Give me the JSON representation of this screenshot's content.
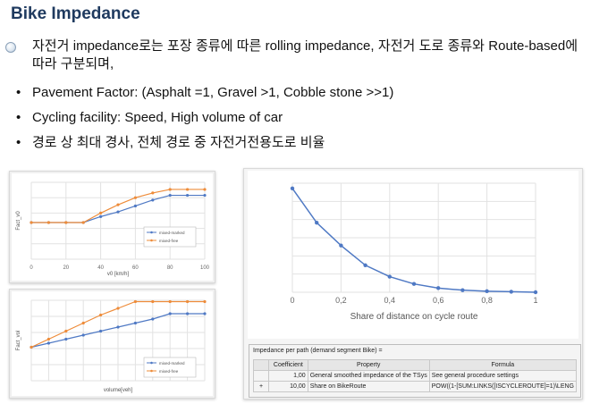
{
  "title": "Bike Impedance",
  "bullets": {
    "main": "자전거 impedance로는 포장 종류에 따른 rolling impedance, 자전거 도로 종류와 Route-based에 따라 구분되며,",
    "sub": [
      "Pavement Factor: (Asphalt =1, Gravel >1, Cobble stone >>1)",
      "Cycling facility: Speed, High volume of car",
      "경로 상 최대 경사, 전체 경로 중 자전거전용도로 비율"
    ],
    "sub_marker": "•"
  },
  "colors": {
    "blue": "#4f79c4",
    "orange": "#ee8c3a",
    "title": "#1f3a5f"
  },
  "chart_data": [
    {
      "type": "line",
      "xlabel": "v0 [km/h]",
      "ylabel": "Fact_v0",
      "xlim": [
        0,
        100
      ],
      "ylim": [
        0,
        1.3
      ],
      "xticks": [
        "0",
        "20",
        "40",
        "60",
        "80",
        "100"
      ],
      "grid": true,
      "legend": "center-right",
      "x": [
        0,
        10,
        20,
        30,
        40,
        50,
        60,
        70,
        80,
        90,
        100
      ],
      "series": [
        {
          "name": "mixed-marked",
          "color": "#4f79c4",
          "values": [
            0.62,
            0.62,
            0.62,
            0.62,
            0.72,
            0.8,
            0.9,
            1.0,
            1.08,
            1.08,
            1.08
          ]
        },
        {
          "name": "mixed-free",
          "color": "#ee8c3a",
          "values": [
            0.62,
            0.62,
            0.62,
            0.62,
            0.78,
            0.92,
            1.04,
            1.12,
            1.18,
            1.18,
            1.18
          ]
        }
      ]
    },
    {
      "type": "line",
      "xlabel": "volume[veh]",
      "ylabel": "Fact_vol",
      "ylim": [
        0,
        1.2
      ],
      "grid": true,
      "legend": "bottom-right",
      "x": [
        0,
        1,
        2,
        3,
        4,
        5,
        6,
        7,
        8,
        9,
        10
      ],
      "series": [
        {
          "name": "mixed-marked",
          "color": "#4f79c4",
          "values": [
            0.5,
            0.56,
            0.62,
            0.68,
            0.74,
            0.8,
            0.86,
            0.92,
            1.0,
            1.0,
            1.0
          ]
        },
        {
          "name": "mixed-free",
          "color": "#ee8c3a",
          "values": [
            0.5,
            0.62,
            0.74,
            0.86,
            0.98,
            1.08,
            1.18,
            1.18,
            1.18,
            1.18,
            1.18
          ]
        }
      ]
    },
    {
      "type": "line",
      "xlabel": "Share of distance on cycle route",
      "ylabel": "",
      "xlim": [
        0,
        1
      ],
      "ylim": [
        0,
        1.05
      ],
      "xticks": [
        "0",
        "0,2",
        "0,4",
        "0,6",
        "0,8",
        "1"
      ],
      "grid": true,
      "x": [
        0,
        0.1,
        0.2,
        0.3,
        0.4,
        0.5,
        0.6,
        0.7,
        0.8,
        0.9,
        1.0
      ],
      "series": [
        {
          "color": "#4f79c4",
          "values": [
            1.0,
            0.67,
            0.45,
            0.26,
            0.15,
            0.08,
            0.04,
            0.02,
            0.01,
            0.005,
            0.0
          ]
        }
      ]
    }
  ],
  "table": {
    "caption": "Impedance per path (demand segment Bike) =",
    "headers": [
      "Coefficient",
      "Property",
      "Formula"
    ],
    "rows": [
      {
        "marker": "",
        "coefficient": "1,00",
        "property": "General smoothed impedance of the TSys",
        "formula": "See general procedure settings"
      },
      {
        "marker": "+",
        "coefficient": "10,00",
        "property": "Share on BikeRoute",
        "formula": "POW((1-[SUM:LINKS([ISCYCLEROUTE]=1)\\LENG"
      }
    ]
  }
}
